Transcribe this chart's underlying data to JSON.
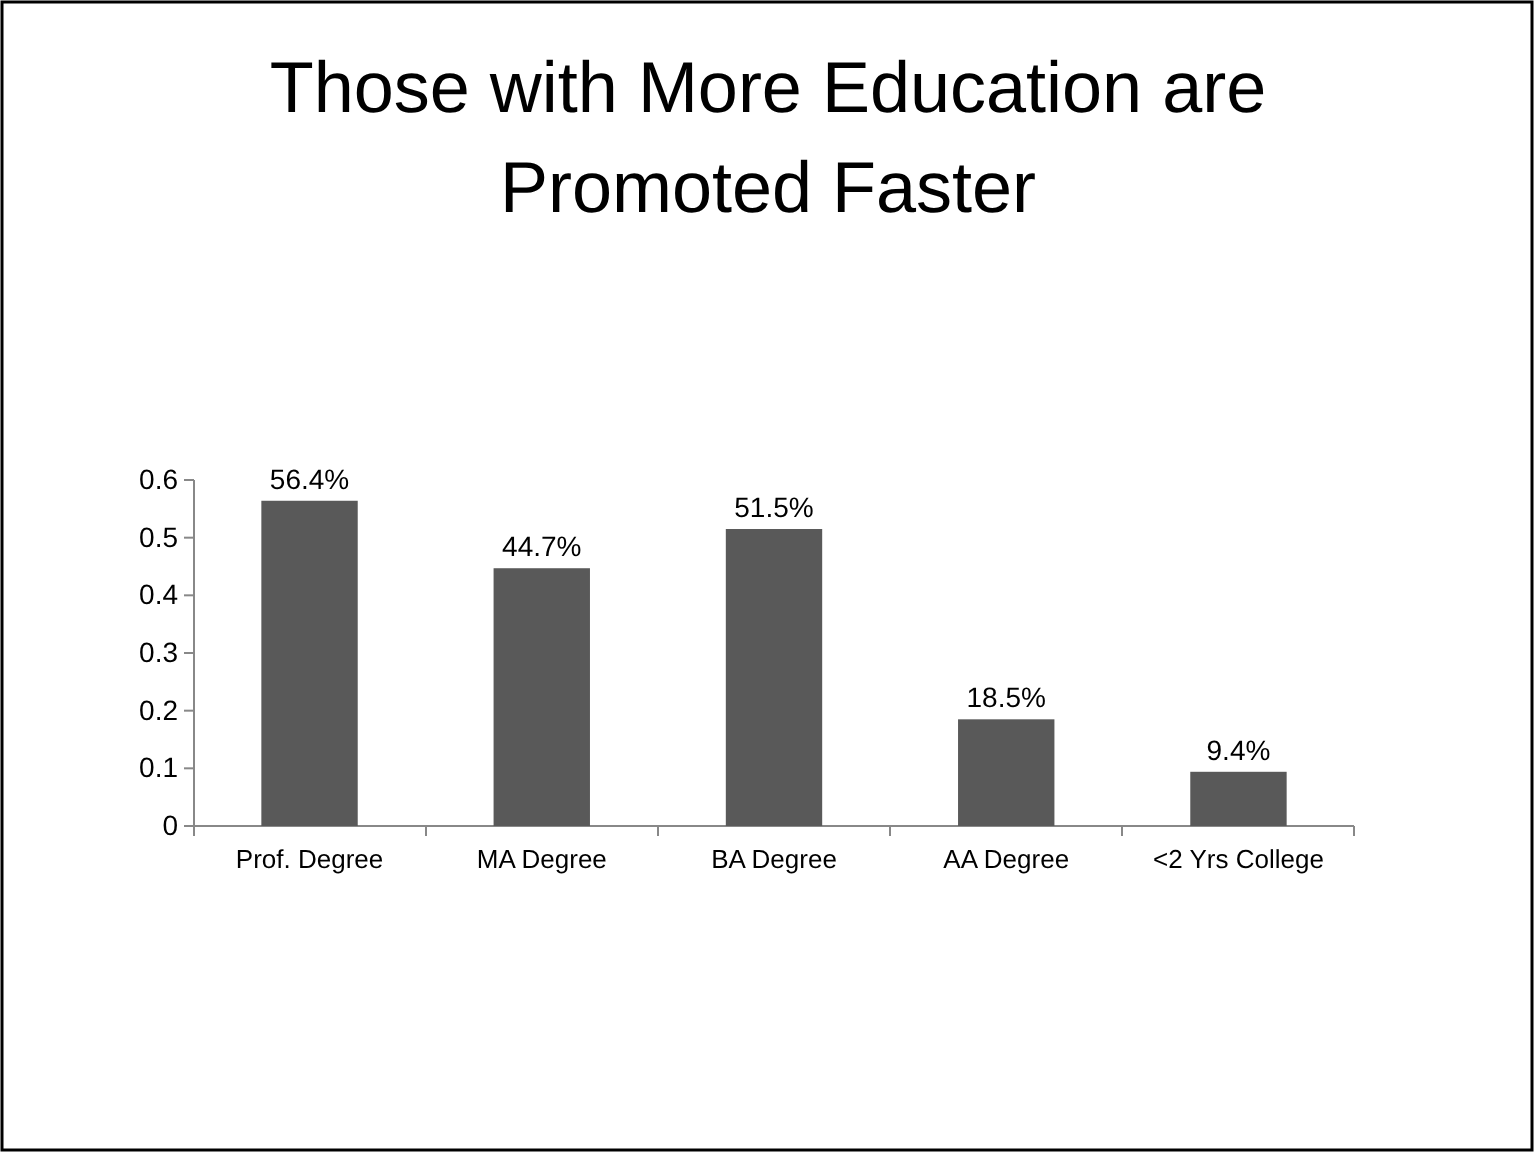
{
  "chart_data": {
    "type": "bar",
    "title": "Those with More Education are Promoted Faster",
    "categories": [
      "Prof. Degree",
      "MA Degree",
      "BA Degree",
      "AA Degree",
      "<2 Yrs College"
    ],
    "values": [
      0.564,
      0.447,
      0.515,
      0.185,
      0.094
    ],
    "value_labels": [
      "56.4%",
      "44.7%",
      "51.5%",
      "18.5%",
      "9.4%"
    ],
    "color": "#595959",
    "ylim": [
      0,
      0.6
    ],
    "yticks": [
      {
        "value": 0,
        "label": "0"
      },
      {
        "value": 0.1,
        "label": "0.1"
      },
      {
        "value": 0.2,
        "label": "0.2"
      },
      {
        "value": 0.3,
        "label": "0.3"
      },
      {
        "value": 0.4,
        "label": "0.4"
      },
      {
        "value": 0.5,
        "label": "0.5"
      },
      {
        "value": 0.6,
        "label": "0.6"
      }
    ],
    "grid": false
  }
}
